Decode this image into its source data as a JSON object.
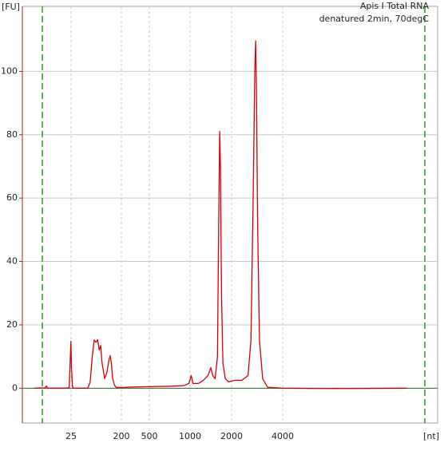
{
  "chart_data": {
    "type": "line",
    "title": "Apis I Total RNA",
    "subtitle": "denatured 2min, 70degC",
    "x_label": "[nt]",
    "y_label": "[FU]",
    "xlim": [
      3,
      30000
    ],
    "ylim": [
      -11,
      120.5
    ],
    "xticks": [
      25,
      200,
      500,
      1000,
      2000,
      4000
    ],
    "yticks": [
      0,
      20,
      40,
      60,
      80,
      100
    ],
    "grid": true,
    "series": [
      {
        "color": "#d40000",
        "x": [
          5,
          8,
          8.5,
          9,
          20,
          23,
          24,
          24.8,
          25.5,
          26.5,
          28,
          50,
          55,
          60,
          65,
          70,
          75,
          80,
          85,
          90,
          100,
          110,
          120,
          126,
          132,
          140,
          150,
          160,
          200,
          300,
          500,
          700,
          900,
          980,
          1020,
          1050,
          1150,
          1250,
          1350,
          1414,
          1460,
          1520,
          1580,
          1620,
          1640,
          1660,
          1690,
          1730,
          1800,
          1900,
          2100,
          2300,
          2500,
          2600,
          2680,
          2740,
          2772,
          2800,
          2850,
          2920,
          3050,
          3260,
          4000,
          8000,
          20000
        ],
        "values": [
          0,
          0.1,
          0.7,
          0,
          0,
          0.2,
          8,
          14.8,
          6,
          0.5,
          0,
          0,
          2,
          10,
          15.2,
          14.5,
          15.3,
          12,
          13.5,
          8,
          3,
          5,
          9,
          10.3,
          8,
          3,
          1,
          0.3,
          0.2,
          0.4,
          0.5,
          0.6,
          0.8,
          1.5,
          4,
          1.5,
          1.5,
          2.5,
          4,
          6.5,
          4,
          3,
          10,
          60,
          81,
          70,
          30,
          8,
          3,
          2,
          2.5,
          2.5,
          4,
          15,
          60,
          100,
          109.6,
          95,
          50,
          15,
          3,
          0.3,
          0,
          -0.1,
          0
        ]
      }
    ]
  }
}
